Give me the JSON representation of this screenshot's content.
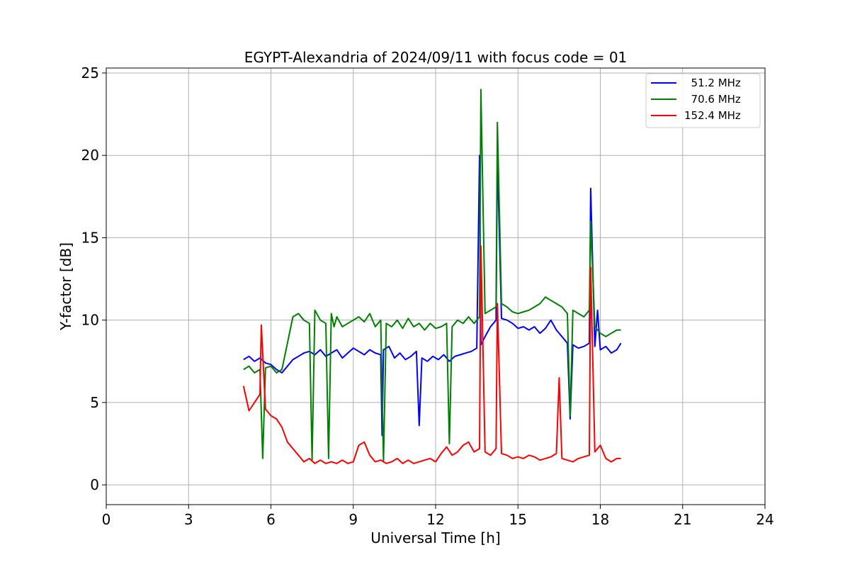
{
  "chart_data": {
    "type": "line",
    "title": "EGYPT-Alexandria of 2024/09/11 with focus code = 01",
    "xlabel": "Universal Time [h]",
    "ylabel": "Y-factor [dB]",
    "xlim": [
      0,
      24
    ],
    "ylim": [
      -1.2,
      25.3
    ],
    "xticks": [
      0,
      3,
      6,
      9,
      12,
      15,
      18,
      21,
      24
    ],
    "yticks": [
      0,
      5,
      10,
      15,
      20,
      25
    ],
    "grid": true,
    "legend_position": "top-right",
    "series": [
      {
        "name": "  51.2 MHz",
        "color": "#0000ff",
        "x": [
          5.0,
          5.2,
          5.4,
          5.6,
          5.8,
          6.0,
          6.2,
          6.4,
          6.6,
          6.8,
          7.0,
          7.2,
          7.4,
          7.6,
          7.8,
          8.0,
          8.2,
          8.4,
          8.6,
          8.8,
          9.0,
          9.2,
          9.4,
          9.6,
          9.8,
          10.0,
          10.05,
          10.1,
          10.3,
          10.5,
          10.7,
          10.9,
          11.1,
          11.3,
          11.4,
          11.5,
          11.7,
          11.9,
          12.1,
          12.3,
          12.5,
          12.7,
          12.9,
          13.1,
          13.3,
          13.5,
          13.6,
          13.65,
          13.8,
          14.0,
          14.2,
          14.25,
          14.4,
          14.6,
          14.8,
          15.0,
          15.2,
          15.4,
          15.6,
          15.8,
          16.0,
          16.2,
          16.4,
          16.6,
          16.8,
          16.9,
          17.0,
          17.2,
          17.4,
          17.6,
          17.65,
          17.8,
          17.9,
          18.0,
          18.2,
          18.4,
          18.6,
          18.75
        ],
        "values": [
          7.6,
          7.8,
          7.5,
          7.7,
          7.4,
          7.3,
          7.0,
          6.8,
          7.2,
          7.6,
          7.8,
          8.0,
          8.1,
          7.9,
          8.2,
          7.8,
          8.0,
          8.2,
          7.7,
          8.0,
          8.3,
          8.1,
          7.9,
          8.2,
          8.0,
          7.9,
          3.0,
          8.2,
          8.4,
          7.7,
          8.0,
          7.6,
          7.8,
          8.1,
          3.6,
          7.7,
          7.5,
          7.8,
          7.6,
          7.9,
          7.5,
          7.8,
          7.9,
          8.0,
          8.1,
          8.3,
          20.0,
          8.5,
          9.0,
          9.6,
          10.0,
          20.0,
          10.1,
          10.0,
          9.8,
          9.5,
          9.6,
          9.4,
          9.6,
          9.2,
          9.5,
          10.0,
          9.4,
          9.0,
          8.6,
          4.0,
          8.5,
          8.3,
          8.4,
          8.6,
          18.0,
          8.4,
          10.6,
          8.2,
          8.4,
          8.0,
          8.2,
          8.6
        ]
      },
      {
        "name": "  70.6 MHz",
        "color": "#008000",
        "x": [
          5.0,
          5.2,
          5.4,
          5.6,
          5.7,
          5.8,
          6.0,
          6.2,
          6.4,
          6.6,
          6.8,
          7.0,
          7.2,
          7.4,
          7.5,
          7.6,
          7.8,
          8.0,
          8.1,
          8.2,
          8.3,
          8.4,
          8.6,
          8.8,
          9.0,
          9.2,
          9.4,
          9.6,
          9.8,
          10.0,
          10.1,
          10.2,
          10.4,
          10.6,
          10.8,
          11.0,
          11.2,
          11.4,
          11.6,
          11.8,
          12.0,
          12.2,
          12.4,
          12.5,
          12.6,
          12.8,
          13.0,
          13.2,
          13.4,
          13.6,
          13.65,
          13.8,
          14.0,
          14.2,
          14.25,
          14.4,
          14.6,
          14.8,
          15.0,
          15.2,
          15.4,
          15.6,
          15.8,
          16.0,
          16.2,
          16.4,
          16.6,
          16.8,
          16.9,
          17.0,
          17.2,
          17.4,
          17.6,
          17.65,
          17.8,
          18.0,
          18.2,
          18.4,
          18.6,
          18.75
        ],
        "values": [
          7.0,
          7.2,
          6.8,
          7.0,
          1.6,
          7.1,
          7.2,
          6.8,
          7.0,
          8.6,
          10.2,
          10.4,
          10.0,
          9.8,
          1.5,
          10.6,
          10.0,
          9.8,
          1.6,
          10.4,
          9.6,
          10.2,
          9.6,
          9.8,
          10.0,
          10.2,
          9.9,
          10.4,
          9.6,
          10.0,
          1.4,
          9.8,
          9.6,
          10.0,
          9.5,
          10.1,
          9.6,
          9.8,
          9.4,
          9.8,
          9.5,
          9.6,
          9.8,
          2.5,
          9.6,
          10.0,
          9.8,
          10.2,
          9.8,
          10.2,
          24.0,
          10.4,
          10.6,
          10.8,
          22.0,
          11.0,
          10.8,
          10.5,
          10.4,
          10.5,
          10.6,
          10.8,
          11.0,
          11.4,
          11.2,
          11.0,
          10.8,
          10.4,
          4.2,
          10.6,
          10.4,
          10.2,
          10.6,
          16.0,
          9.6,
          9.2,
          9.0,
          9.2,
          9.4,
          9.4
        ]
      },
      {
        "name": "152.4 MHz",
        "color": "#ff0000",
        "x": [
          5.0,
          5.2,
          5.4,
          5.6,
          5.65,
          5.8,
          6.0,
          6.2,
          6.4,
          6.6,
          6.8,
          7.0,
          7.2,
          7.4,
          7.6,
          7.8,
          8.0,
          8.2,
          8.4,
          8.6,
          8.8,
          9.0,
          9.2,
          9.4,
          9.6,
          9.8,
          10.0,
          10.2,
          10.4,
          10.6,
          10.8,
          11.0,
          11.2,
          11.4,
          11.6,
          11.8,
          12.0,
          12.2,
          12.4,
          12.6,
          12.8,
          13.0,
          13.2,
          13.4,
          13.6,
          13.65,
          13.8,
          14.0,
          14.2,
          14.25,
          14.4,
          14.6,
          14.8,
          15.0,
          15.2,
          15.4,
          15.6,
          15.8,
          16.0,
          16.2,
          16.4,
          16.5,
          16.6,
          16.8,
          17.0,
          17.2,
          17.4,
          17.6,
          17.65,
          17.8,
          18.0,
          18.2,
          18.4,
          18.6,
          18.75
        ],
        "values": [
          6.0,
          4.5,
          5.0,
          5.5,
          9.7,
          4.6,
          4.2,
          4.0,
          3.5,
          2.6,
          2.2,
          1.8,
          1.4,
          1.6,
          1.3,
          1.5,
          1.3,
          1.4,
          1.3,
          1.5,
          1.3,
          1.4,
          2.4,
          2.6,
          1.8,
          1.4,
          1.5,
          1.3,
          1.4,
          1.6,
          1.3,
          1.5,
          1.3,
          1.4,
          1.5,
          1.6,
          1.4,
          1.9,
          2.3,
          1.8,
          2.0,
          2.4,
          2.6,
          2.0,
          2.2,
          14.5,
          2.0,
          1.8,
          2.2,
          11.0,
          1.9,
          1.8,
          1.6,
          1.7,
          1.6,
          1.8,
          1.7,
          1.5,
          1.6,
          1.7,
          1.9,
          6.5,
          1.6,
          1.5,
          1.4,
          1.6,
          1.7,
          1.8,
          13.2,
          2.0,
          2.4,
          1.6,
          1.4,
          1.6,
          1.6
        ]
      }
    ]
  }
}
